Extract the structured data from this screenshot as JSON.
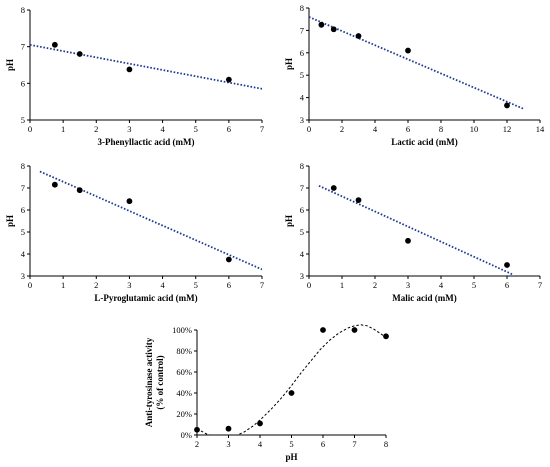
{
  "chart_data": [
    {
      "type": "scatter",
      "xlabel": "3-Phenyllactic acid (mM)",
      "ylabel": "pH",
      "xlim": [
        0,
        7
      ],
      "ylim": [
        5,
        8
      ],
      "xticks": [
        "0",
        "1",
        "2",
        "3",
        "4",
        "5",
        "6",
        "7"
      ],
      "yticks": [
        "5",
        "6",
        "7",
        "8"
      ],
      "points": [
        {
          "x": 0.75,
          "y": 7.05
        },
        {
          "x": 1.5,
          "y": 6.8
        },
        {
          "x": 3,
          "y": 6.38
        },
        {
          "x": 6,
          "y": 6.1
        }
      ],
      "trendline": {
        "x1": 0,
        "y1": 7.05,
        "x2": 7,
        "y2": 5.85
      },
      "grid": false
    },
    {
      "type": "scatter",
      "xlabel": "Lactic acid (mM)",
      "ylabel": "pH",
      "xlim": [
        0,
        14
      ],
      "ylim": [
        3,
        8
      ],
      "xticks": [
        "0",
        "2",
        "4",
        "6",
        "8",
        "10",
        "12",
        "14"
      ],
      "yticks": [
        "3",
        "4",
        "5",
        "6",
        "7",
        "8"
      ],
      "points": [
        {
          "x": 0.75,
          "y": 7.25
        },
        {
          "x": 1.5,
          "y": 7.05
        },
        {
          "x": 3,
          "y": 6.75
        },
        {
          "x": 6,
          "y": 6.1
        },
        {
          "x": 12,
          "y": 3.65
        }
      ],
      "trendline": {
        "x1": 0,
        "y1": 7.6,
        "x2": 13,
        "y2": 3.5
      },
      "grid": false
    },
    {
      "type": "scatter",
      "xlabel": "L-Pyroglutamic acid (mM)",
      "ylabel": "pH",
      "xlim": [
        0,
        7
      ],
      "ylim": [
        3,
        8
      ],
      "xticks": [
        "0",
        "1",
        "2",
        "3",
        "4",
        "5",
        "6",
        "7"
      ],
      "yticks": [
        "3",
        "4",
        "5",
        "6",
        "7",
        "8"
      ],
      "points": [
        {
          "x": 0.75,
          "y": 7.15
        },
        {
          "x": 1.5,
          "y": 6.9
        },
        {
          "x": 3,
          "y": 6.4
        },
        {
          "x": 6,
          "y": 3.75
        }
      ],
      "trendline": {
        "x1": 0.3,
        "y1": 7.75,
        "x2": 7,
        "y2": 3.3
      },
      "grid": false
    },
    {
      "type": "scatter",
      "xlabel": "Malic acid (mM)",
      "ylabel": "pH",
      "xlim": [
        0,
        7
      ],
      "ylim": [
        3,
        8
      ],
      "xticks": [
        "0",
        "1",
        "2",
        "3",
        "4",
        "5",
        "6",
        "7"
      ],
      "yticks": [
        "3",
        "4",
        "5",
        "6",
        "7",
        "8"
      ],
      "points": [
        {
          "x": 0.75,
          "y": 7.0
        },
        {
          "x": 1.5,
          "y": 6.45
        },
        {
          "x": 3,
          "y": 4.6
        },
        {
          "x": 6,
          "y": 3.5
        }
      ],
      "trendline": {
        "x1": 0.3,
        "y1": 7.1,
        "x2": 6.2,
        "y2": 3.05
      },
      "grid": false
    },
    {
      "type": "scatter",
      "xlabel": "pH",
      "ylabel": "Anti-tyrosinase activity (% of control)",
      "xlim": [
        2,
        8
      ],
      "ylim": [
        0,
        100
      ],
      "xticks": [
        "2",
        "3",
        "4",
        "5",
        "6",
        "7",
        "8"
      ],
      "yticks": [
        "0%",
        "20%",
        "40%",
        "60%",
        "80%",
        "100%"
      ],
      "points": [
        {
          "x": 2,
          "y": 5
        },
        {
          "x": 3,
          "y": 6
        },
        {
          "x": 4,
          "y": 11
        },
        {
          "x": 5,
          "y": 40
        },
        {
          "x": 6,
          "y": 100
        },
        {
          "x": 7,
          "y": 100
        },
        {
          "x": 8,
          "y": 94
        }
      ],
      "fit_curve": [
        [
          2,
          6
        ],
        [
          2.3,
          1
        ],
        [
          2.6,
          -2
        ],
        [
          2.9,
          -3
        ],
        [
          3.2,
          -1
        ],
        [
          3.5,
          3
        ],
        [
          3.8,
          9
        ],
        [
          4.1,
          17
        ],
        [
          4.4,
          26
        ],
        [
          4.7,
          36
        ],
        [
          5.0,
          47
        ],
        [
          5.3,
          59
        ],
        [
          5.6,
          70
        ],
        [
          5.9,
          81
        ],
        [
          6.2,
          90
        ],
        [
          6.5,
          97
        ],
        [
          6.8,
          102
        ],
        [
          7.0,
          104
        ],
        [
          7.2,
          105
        ],
        [
          7.4,
          104
        ],
        [
          7.6,
          101
        ],
        [
          7.8,
          97
        ],
        [
          8.0,
          93
        ]
      ],
      "grid": false
    }
  ]
}
